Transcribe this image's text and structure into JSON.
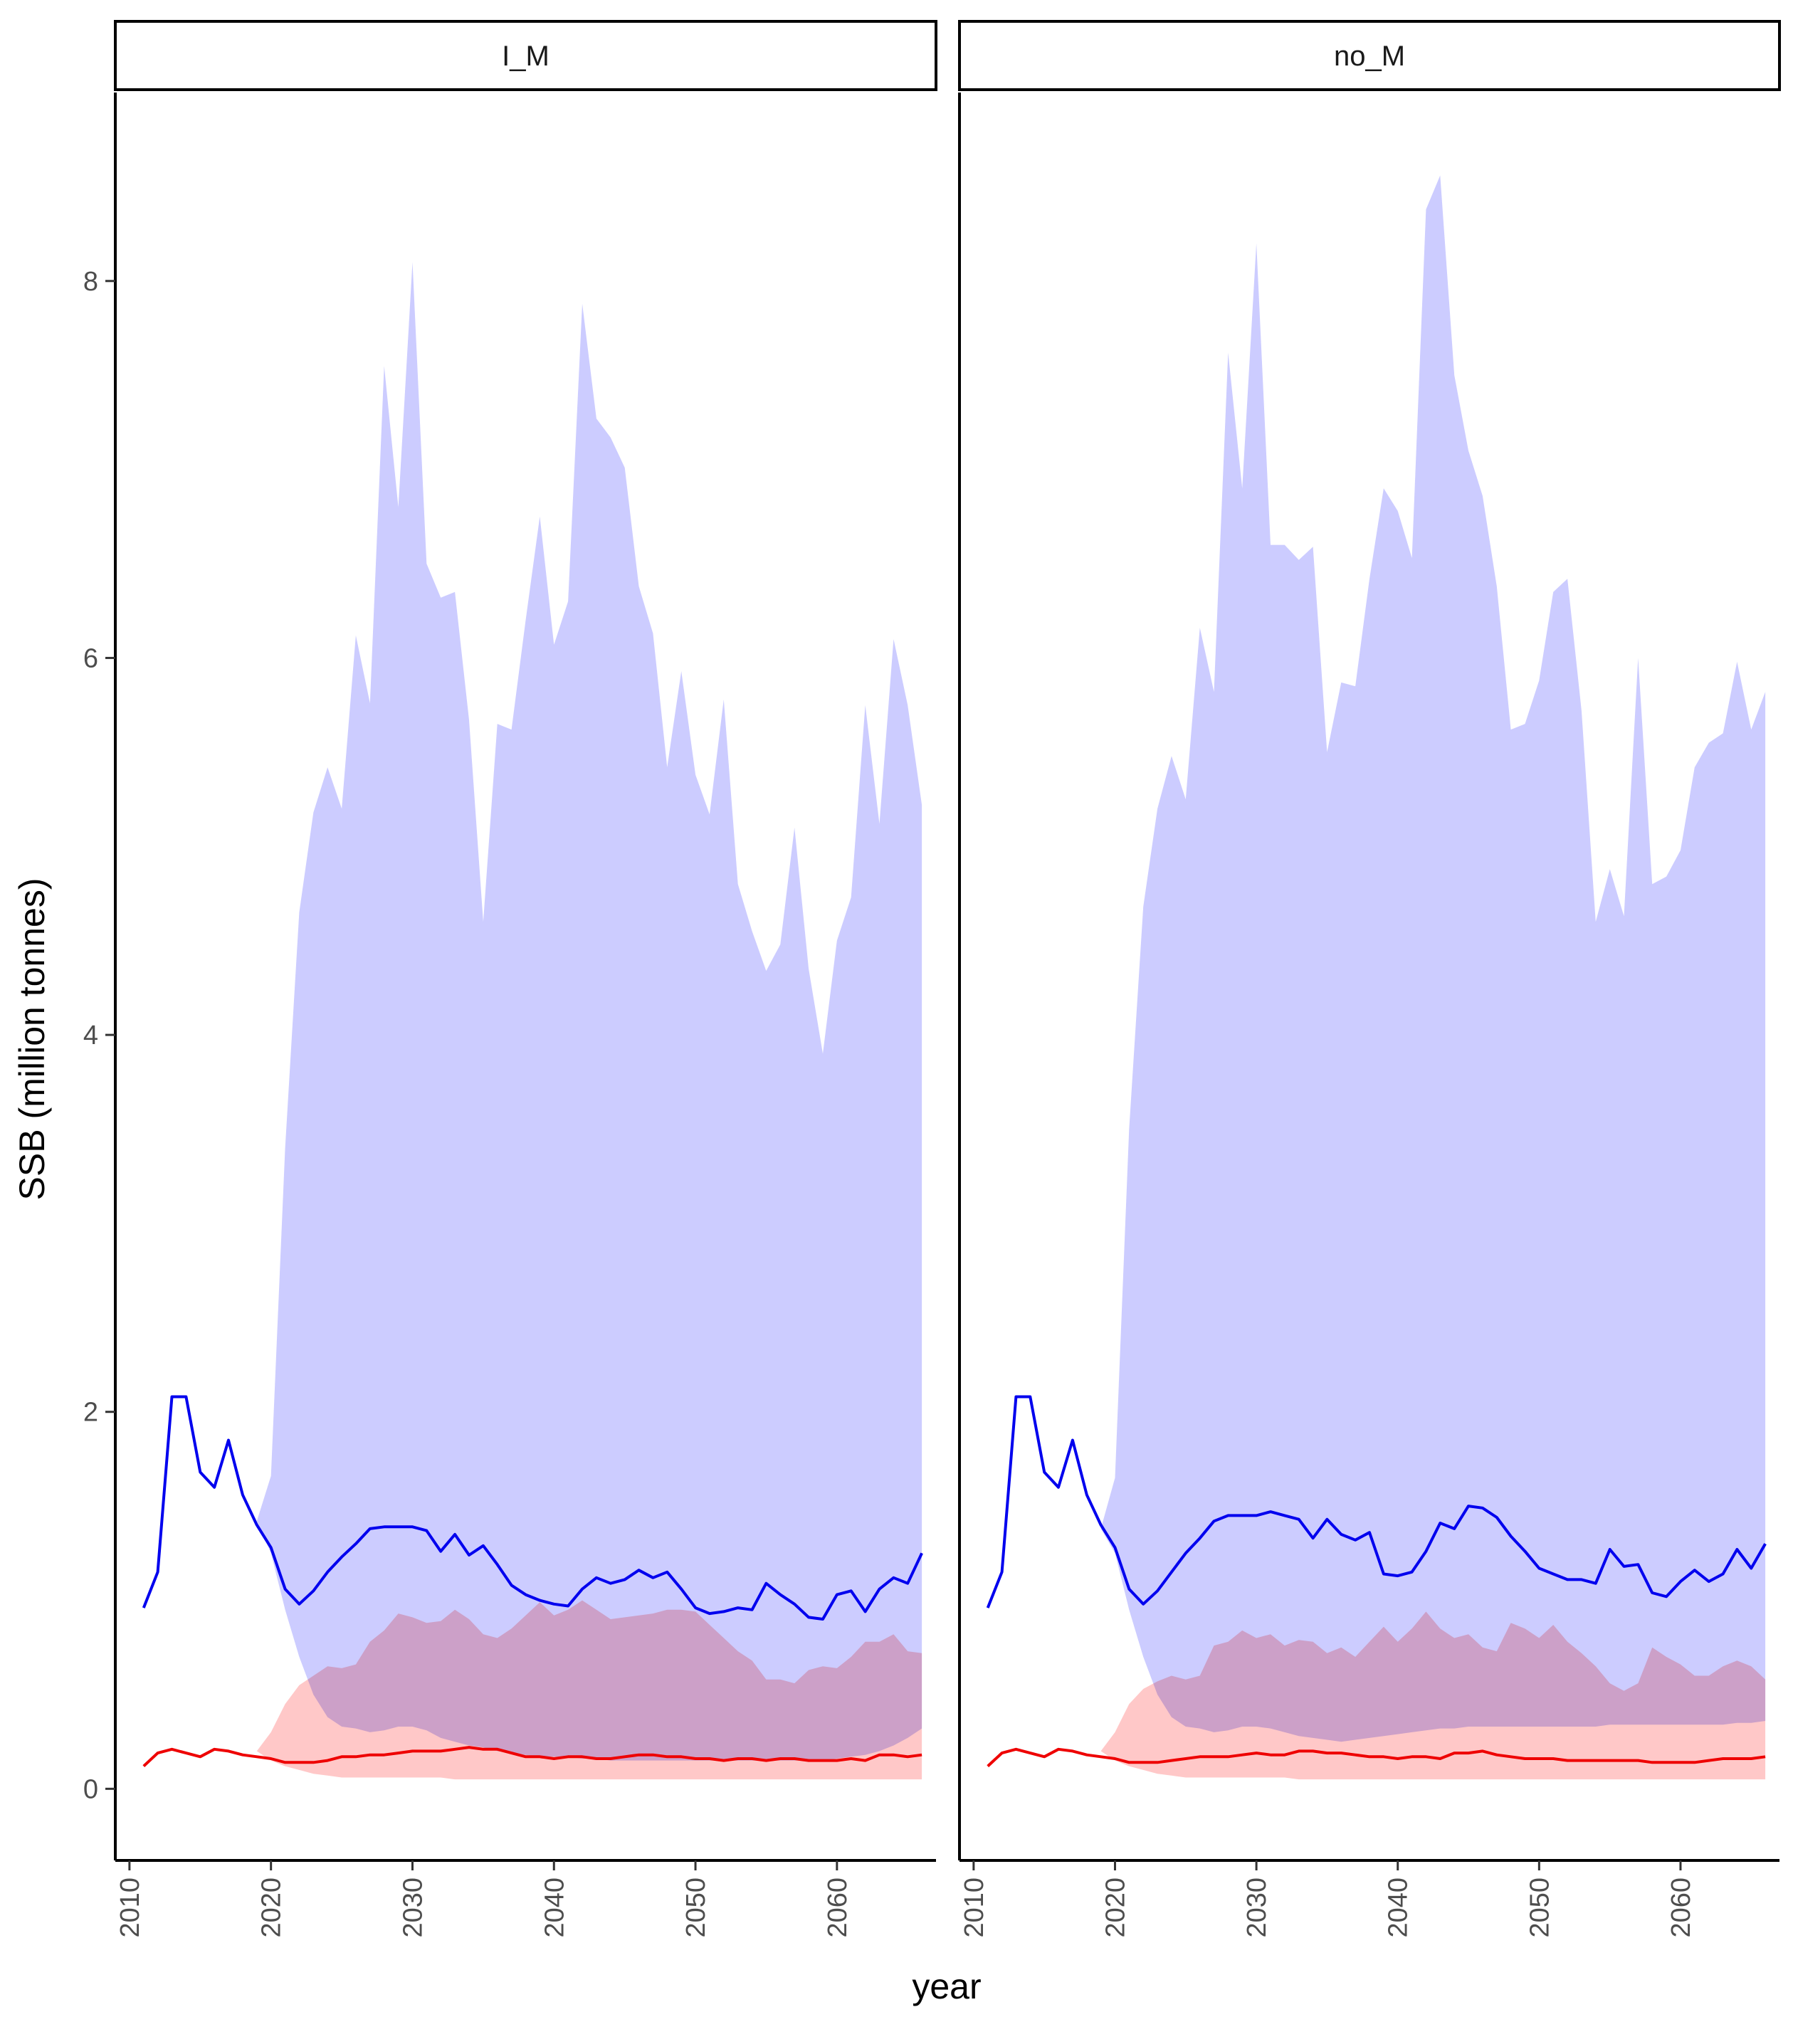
{
  "chart_data": {
    "type": "area",
    "xlabel": "year",
    "ylabel": "SSB (million tonnes)",
    "xlim": [
      2009,
      2067
    ],
    "ylim": [
      -0.38,
      9.0
    ],
    "x_ticks": [
      2010,
      2020,
      2030,
      2040,
      2050,
      2060
    ],
    "y_ticks": [
      0,
      2,
      4,
      6,
      8
    ],
    "colors": {
      "blue_line": "#0000ee",
      "blue_band": "#ccccff",
      "red_line": "#ee0000",
      "red_band": "#ffc8c8",
      "overlap": "#c8a4d6"
    },
    "years": [
      2011,
      2012,
      2013,
      2014,
      2015,
      2016,
      2017,
      2018,
      2019,
      2020,
      2021,
      2022,
      2023,
      2024,
      2025,
      2026,
      2027,
      2028,
      2029,
      2030,
      2031,
      2032,
      2033,
      2034,
      2035,
      2036,
      2037,
      2038,
      2039,
      2040,
      2041,
      2042,
      2043,
      2044,
      2045,
      2046,
      2047,
      2048,
      2049,
      2050,
      2051,
      2052,
      2053,
      2054,
      2055,
      2056,
      2057,
      2058,
      2059,
      2060,
      2061,
      2062,
      2063,
      2064,
      2065,
      2066
    ],
    "panels": [
      {
        "strip": "I_M",
        "blue_median": [
          0.96,
          1.15,
          2.08,
          2.08,
          1.68,
          1.6,
          1.85,
          1.56,
          1.4,
          1.28,
          1.06,
          0.98,
          1.05,
          1.15,
          1.23,
          1.3,
          1.38,
          1.39,
          1.39,
          1.39,
          1.37,
          1.26,
          1.35,
          1.24,
          1.29,
          1.19,
          1.08,
          1.03,
          1.0,
          0.98,
          0.97,
          1.06,
          1.12,
          1.09,
          1.11,
          1.16,
          1.12,
          1.15,
          1.06,
          0.96,
          0.93,
          0.94,
          0.96,
          0.95,
          1.09,
          1.03,
          0.98,
          0.91,
          0.9,
          1.03,
          1.05,
          0.94,
          1.06,
          1.12,
          1.09,
          1.25
        ],
        "blue_upper": [
          null,
          null,
          null,
          null,
          null,
          null,
          null,
          null,
          1.42,
          1.66,
          3.4,
          4.65,
          5.18,
          5.42,
          5.2,
          6.12,
          5.76,
          7.55,
          6.8,
          8.1,
          6.5,
          6.32,
          6.35,
          5.67,
          4.6,
          5.65,
          5.62,
          6.2,
          6.75,
          6.07,
          6.3,
          7.88,
          7.27,
          7.17,
          7.01,
          6.38,
          6.13,
          5.42,
          5.93,
          5.38,
          5.17,
          5.78,
          4.8,
          4.55,
          4.34,
          4.48,
          5.1,
          4.35,
          3.9,
          4.5,
          4.73,
          5.75,
          5.12,
          6.1,
          5.75,
          5.22
        ],
        "blue_lower": [
          null,
          null,
          null,
          null,
          null,
          null,
          null,
          null,
          1.42,
          1.25,
          0.95,
          0.7,
          0.5,
          0.38,
          0.33,
          0.32,
          0.3,
          0.31,
          0.33,
          0.33,
          0.31,
          0.27,
          0.25,
          0.23,
          0.22,
          0.2,
          0.19,
          0.18,
          0.17,
          0.17,
          0.17,
          0.16,
          0.16,
          0.15,
          0.15,
          0.15,
          0.15,
          0.15,
          0.15,
          0.15,
          0.15,
          0.15,
          0.15,
          0.15,
          0.15,
          0.15,
          0.15,
          0.15,
          0.15,
          0.16,
          0.17,
          0.18,
          0.2,
          0.23,
          0.27,
          0.32
        ],
        "red_median": [
          0.12,
          0.19,
          0.21,
          0.19,
          0.17,
          0.21,
          0.2,
          0.18,
          0.17,
          0.16,
          0.14,
          0.14,
          0.14,
          0.15,
          0.17,
          0.17,
          0.18,
          0.18,
          0.19,
          0.2,
          0.2,
          0.2,
          0.21,
          0.22,
          0.21,
          0.21,
          0.19,
          0.17,
          0.17,
          0.16,
          0.17,
          0.17,
          0.16,
          0.16,
          0.17,
          0.18,
          0.18,
          0.17,
          0.17,
          0.16,
          0.16,
          0.15,
          0.16,
          0.16,
          0.15,
          0.16,
          0.16,
          0.15,
          0.15,
          0.15,
          0.16,
          0.15,
          0.18,
          0.18,
          0.17,
          0.18
        ],
        "red_upper": [
          null,
          null,
          null,
          null,
          null,
          null,
          null,
          null,
          0.2,
          0.3,
          0.45,
          0.55,
          0.6,
          0.65,
          0.64,
          0.66,
          0.78,
          0.84,
          0.93,
          0.91,
          0.88,
          0.89,
          0.95,
          0.9,
          0.82,
          0.8,
          0.85,
          0.92,
          0.99,
          0.92,
          0.95,
          1.0,
          0.95,
          0.9,
          0.91,
          0.92,
          0.93,
          0.95,
          0.95,
          0.94,
          0.87,
          0.8,
          0.73,
          0.68,
          0.58,
          0.58,
          0.56,
          0.63,
          0.65,
          0.64,
          0.7,
          0.78,
          0.78,
          0.82,
          0.73,
          0.72
        ],
        "red_lower": [
          null,
          null,
          null,
          null,
          null,
          null,
          null,
          null,
          0.2,
          0.15,
          0.12,
          0.1,
          0.08,
          0.07,
          0.06,
          0.06,
          0.06,
          0.06,
          0.06,
          0.06,
          0.06,
          0.06,
          0.05,
          0.05,
          0.05,
          0.05,
          0.05,
          0.05,
          0.05,
          0.05,
          0.05,
          0.05,
          0.05,
          0.05,
          0.05,
          0.05,
          0.05,
          0.05,
          0.05,
          0.05,
          0.05,
          0.05,
          0.05,
          0.05,
          0.05,
          0.05,
          0.05,
          0.05,
          0.05,
          0.05,
          0.05,
          0.05,
          0.05,
          0.05,
          0.05,
          0.05
        ]
      },
      {
        "strip": "no_M",
        "blue_median": [
          0.96,
          1.15,
          2.08,
          2.08,
          1.68,
          1.6,
          1.85,
          1.56,
          1.4,
          1.28,
          1.06,
          0.98,
          1.05,
          1.15,
          1.25,
          1.33,
          1.42,
          1.45,
          1.45,
          1.45,
          1.47,
          1.45,
          1.43,
          1.33,
          1.43,
          1.35,
          1.32,
          1.36,
          1.14,
          1.13,
          1.15,
          1.26,
          1.41,
          1.38,
          1.5,
          1.49,
          1.44,
          1.34,
          1.26,
          1.17,
          1.14,
          1.11,
          1.11,
          1.09,
          1.27,
          1.18,
          1.19,
          1.04,
          1.02,
          1.1,
          1.16,
          1.1,
          1.14,
          1.27,
          1.17,
          1.3
        ],
        "blue_upper": [
          null,
          null,
          null,
          null,
          null,
          null,
          null,
          null,
          1.38,
          1.65,
          3.5,
          4.68,
          5.2,
          5.48,
          5.25,
          6.16,
          5.82,
          7.62,
          6.9,
          8.2,
          6.6,
          6.6,
          6.52,
          6.59,
          5.5,
          5.87,
          5.85,
          6.42,
          6.9,
          6.78,
          6.53,
          8.38,
          8.56,
          7.5,
          7.1,
          6.86,
          6.38,
          5.62,
          5.65,
          5.88,
          6.35,
          6.42,
          5.72,
          4.6,
          4.88,
          4.63,
          6.0,
          4.8,
          4.84,
          4.98,
          5.42,
          5.55,
          5.6,
          5.98,
          5.62,
          5.82
        ],
        "blue_lower": [
          null,
          null,
          null,
          null,
          null,
          null,
          null,
          null,
          1.38,
          1.25,
          0.95,
          0.7,
          0.5,
          0.38,
          0.33,
          0.32,
          0.3,
          0.31,
          0.33,
          0.33,
          0.32,
          0.3,
          0.28,
          0.27,
          0.26,
          0.25,
          0.26,
          0.27,
          0.28,
          0.29,
          0.3,
          0.31,
          0.32,
          0.32,
          0.33,
          0.33,
          0.33,
          0.33,
          0.33,
          0.33,
          0.33,
          0.33,
          0.33,
          0.33,
          0.34,
          0.34,
          0.34,
          0.34,
          0.34,
          0.34,
          0.34,
          0.34,
          0.34,
          0.35,
          0.35,
          0.36
        ],
        "red_median": [
          0.12,
          0.19,
          0.21,
          0.19,
          0.17,
          0.21,
          0.2,
          0.18,
          0.17,
          0.16,
          0.14,
          0.14,
          0.14,
          0.15,
          0.16,
          0.17,
          0.17,
          0.17,
          0.18,
          0.19,
          0.18,
          0.18,
          0.2,
          0.2,
          0.19,
          0.19,
          0.18,
          0.17,
          0.17,
          0.16,
          0.17,
          0.17,
          0.16,
          0.19,
          0.19,
          0.2,
          0.18,
          0.17,
          0.16,
          0.16,
          0.16,
          0.15,
          0.15,
          0.15,
          0.15,
          0.15,
          0.15,
          0.14,
          0.14,
          0.14,
          0.14,
          0.15,
          0.16,
          0.16,
          0.16,
          0.17
        ],
        "red_upper": [
          null,
          null,
          null,
          null,
          null,
          null,
          null,
          null,
          0.2,
          0.3,
          0.45,
          0.53,
          0.57,
          0.6,
          0.58,
          0.6,
          0.76,
          0.78,
          0.84,
          0.8,
          0.82,
          0.76,
          0.79,
          0.78,
          0.72,
          0.75,
          0.7,
          0.78,
          0.86,
          0.78,
          0.85,
          0.94,
          0.85,
          0.8,
          0.82,
          0.75,
          0.73,
          0.88,
          0.85,
          0.8,
          0.87,
          0.78,
          0.72,
          0.65,
          0.56,
          0.52,
          0.56,
          0.75,
          0.7,
          0.66,
          0.6,
          0.6,
          0.65,
          0.68,
          0.65,
          0.58
        ],
        "red_lower": [
          null,
          null,
          null,
          null,
          null,
          null,
          null,
          null,
          0.2,
          0.15,
          0.12,
          0.1,
          0.08,
          0.07,
          0.06,
          0.06,
          0.06,
          0.06,
          0.06,
          0.06,
          0.06,
          0.06,
          0.05,
          0.05,
          0.05,
          0.05,
          0.05,
          0.05,
          0.05,
          0.05,
          0.05,
          0.05,
          0.05,
          0.05,
          0.05,
          0.05,
          0.05,
          0.05,
          0.05,
          0.05,
          0.05,
          0.05,
          0.05,
          0.05,
          0.05,
          0.05,
          0.05,
          0.05,
          0.05,
          0.05,
          0.05,
          0.05,
          0.05,
          0.05,
          0.05,
          0.05
        ]
      }
    ]
  }
}
